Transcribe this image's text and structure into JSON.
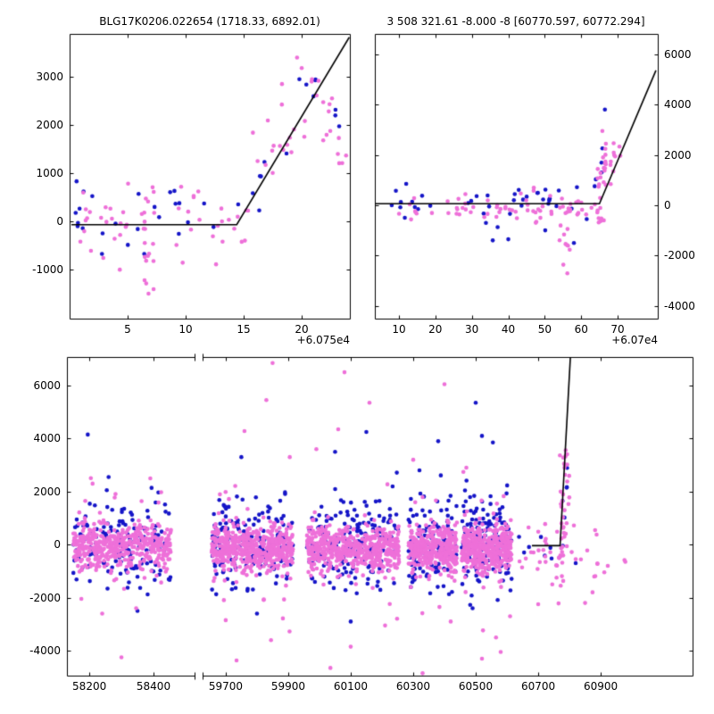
{
  "colors": {
    "background": "#ffffff",
    "blue": "#1515c8",
    "magenta": "#ee70d9",
    "line": "#000000",
    "axis": "#000000"
  },
  "marker_radius": 2.3,
  "chart_data": [
    {
      "id": "top-left",
      "type": "scatter",
      "title": "BLG17K0206.022654 (1718.33, 6892.01)",
      "x_offset_label": "+6.075e4",
      "px": {
        "l": 78,
        "t": 38,
        "r": 392,
        "b": 357
      },
      "xlim": [
        0,
        24.15
      ],
      "ylim": [
        -2020,
        3890
      ],
      "xticks": [
        5,
        10,
        15,
        20
      ],
      "xtick_labels": [
        "5",
        "10",
        "15",
        "20"
      ],
      "yticks": [
        -1000,
        0,
        1000,
        2000,
        3000
      ],
      "ytick_labels": [
        "-1000",
        "0",
        "1000",
        "2000",
        "3000"
      ],
      "ylabel_side": "left",
      "show_xlabels": true,
      "show_ylabels": true,
      "spines": {
        "l": true,
        "r": true,
        "t": true,
        "b": true
      },
      "line": [
        [
          0.15,
          -70
        ],
        [
          14.4,
          -70
        ],
        [
          24.1,
          3820
        ]
      ],
      "clusters": [
        {
          "c": "b",
          "n": 24,
          "x": [
            0.3,
            14.8
          ],
          "y": [
            150,
            150
          ],
          "sd": 330
        },
        {
          "c": "b",
          "n": 9,
          "x": [
            15,
            21.2
          ],
          "y": [
            400,
            2400
          ],
          "sd": 450
        },
        {
          "c": "b",
          "n": 3,
          "x": [
            21.5,
            23.3
          ],
          "y": [
            2250,
            2250
          ],
          "sd": 200
        },
        {
          "c": "b",
          "pts": [
            [
              19.8,
              2950
            ],
            [
              20.4,
              2840
            ],
            [
              0.6,
              830
            ],
            [
              1.2,
              620
            ]
          ]
        },
        {
          "c": "m",
          "n": 46,
          "x": [
            0.3,
            15
          ],
          "y": [
            -30,
            -30
          ],
          "sd": 380
        },
        {
          "c": "m",
          "n": 14,
          "x": [
            6.3,
            7.3
          ],
          "y": [
            -450,
            -450
          ],
          "sd": 650
        },
        {
          "c": "m",
          "n": 22,
          "x": [
            15,
            21.5
          ],
          "y": [
            300,
            2600
          ],
          "sd": 520
        },
        {
          "c": "m",
          "n": 11,
          "x": [
            21.5,
            23.9
          ],
          "y": [
            2300,
            1500
          ],
          "sd": 420
        },
        {
          "c": "m",
          "pts": [
            [
              19.6,
              3400
            ],
            [
              20.0,
              3180
            ],
            [
              6.8,
              -1500
            ],
            [
              6.6,
              -1290
            ],
            [
              2.9,
              -760
            ],
            [
              18.3,
              2850
            ],
            [
              22.4,
              2430
            ],
            [
              16.2,
              1250
            ]
          ]
        }
      ]
    },
    {
      "id": "top-right",
      "type": "scatter",
      "title": "3 508 321.61 -8.000 -8 [60770.597, 60772.294]",
      "x_offset_label": "+6.07e4",
      "px": {
        "l": 420,
        "t": 38,
        "r": 737,
        "b": 357
      },
      "xlim": [
        3.4,
        81
      ],
      "ylim": [
        -4500,
        6800
      ],
      "xticks": [
        10,
        20,
        30,
        40,
        50,
        60,
        70
      ],
      "xtick_labels": [
        "10",
        "20",
        "30",
        "40",
        "50",
        "60",
        "70"
      ],
      "yticks": [
        -4000,
        -2000,
        0,
        2000,
        4000,
        6000
      ],
      "ytick_labels": [
        "-4000",
        "-2000",
        "0",
        "2000",
        "4000",
        "6000"
      ],
      "ylabel_side": "right",
      "show_xlabels": true,
      "show_ylabels": true,
      "spines": {
        "l": true,
        "r": true,
        "t": true,
        "b": true
      },
      "line": [
        [
          3.5,
          60
        ],
        [
          65,
          60
        ],
        [
          80.5,
          5350
        ]
      ],
      "clusters": [
        {
          "c": "b",
          "n": 36,
          "x": [
            8,
            64
          ],
          "y": [
            280,
            280
          ],
          "sd": 350
        },
        {
          "c": "b",
          "n": 4,
          "x": [
            28,
            60
          ],
          "y": [
            -750,
            -900
          ],
          "sd": 350
        },
        {
          "c": "b",
          "n": 5,
          "x": [
            63.5,
            67
          ],
          "y": [
            900,
            2100
          ],
          "sd": 600
        },
        {
          "c": "b",
          "pts": [
            [
              66.5,
              3800
            ],
            [
              40,
              -1350
            ],
            [
              58,
              -1500
            ],
            [
              12,
              850
            ]
          ]
        },
        {
          "c": "m",
          "n": 10,
          "x": [
            8,
            24
          ],
          "y": [
            -50,
            -50
          ],
          "sd": 300
        },
        {
          "c": "m",
          "n": 58,
          "x": [
            25,
            64
          ],
          "y": [
            -150,
            -150
          ],
          "sd": 240
        },
        {
          "c": "m",
          "n": 10,
          "x": [
            53.5,
            57
          ],
          "y": [
            -1000,
            -1100
          ],
          "sd": 700
        },
        {
          "c": "m",
          "n": 26,
          "x": [
            64.3,
            66.8
          ],
          "y": [
            300,
            1500
          ],
          "sd": 750
        },
        {
          "c": "m",
          "n": 9,
          "x": [
            66.8,
            71
          ],
          "y": [
            1700,
            2100
          ],
          "sd": 450
        },
        {
          "c": "m",
          "pts": [
            [
              56.2,
              -2700
            ],
            [
              55.1,
              -2360
            ],
            [
              65.8,
              2950
            ],
            [
              68.9,
              2460
            ],
            [
              66.2,
              -600
            ],
            [
              47,
              700
            ]
          ]
        }
      ]
    },
    {
      "id": "bottom-left-segment",
      "type": "scatter",
      "px": {
        "l": 75,
        "t": 400,
        "r": 218,
        "b": 757
      },
      "xlim": [
        58130,
        58528
      ],
      "ylim": [
        -4940,
        7075
      ],
      "xticks": [
        58200,
        58400
      ],
      "xtick_labels": [
        "58200",
        "58400"
      ],
      "yticks": [
        -4000,
        -2000,
        0,
        2000,
        4000,
        6000
      ],
      "ytick_labels": [
        "-4000",
        "-2000",
        "0",
        "2000",
        "4000",
        "6000"
      ],
      "ylabel_side": "left",
      "show_xlabels": true,
      "show_ylabels": true,
      "spines": {
        "l": true,
        "r": false,
        "t": true,
        "b": true
      },
      "break_edge": "right",
      "clusters": [
        {
          "c": "b",
          "n": 150,
          "x": [
            58150,
            58455
          ],
          "y": [
            0,
            0
          ],
          "sd": 850
        },
        {
          "c": "b",
          "pts": [
            [
              58260,
              2550
            ],
            [
              58350,
              -2500
            ],
            [
              58195,
              4150
            ]
          ]
        },
        {
          "c": "m",
          "n": 430,
          "x": [
            58150,
            58455
          ],
          "y": [
            -120,
            -120
          ],
          "sd": 430
        },
        {
          "c": "m",
          "n": 25,
          "x": [
            58155,
            58450
          ],
          "y": [
            -100,
            -100
          ],
          "sd": 1300
        },
        {
          "c": "m",
          "pts": [
            [
              58300,
              -4250
            ],
            [
              58210,
              2300
            ],
            [
              58390,
              2500
            ],
            [
              58240,
              -2600
            ]
          ]
        }
      ]
    },
    {
      "id": "bottom-right-segment",
      "type": "scatter",
      "px": {
        "l": 227,
        "t": 400,
        "r": 776,
        "b": 757
      },
      "xlim": [
        59626,
        61194
      ],
      "ylim": [
        -4940,
        7075
      ],
      "xticks": [
        59700,
        59900,
        60100,
        60300,
        60500,
        60700,
        60900
      ],
      "xtick_labels": [
        "59700",
        "59900",
        "60100",
        "60300",
        "60500",
        "60700",
        "60900"
      ],
      "yticks": [
        -4000,
        -2000,
        0,
        2000,
        4000,
        6000
      ],
      "ytick_labels": [
        "-4000",
        "-2000",
        "0",
        "2000",
        "4000",
        "6000"
      ],
      "ylabel_side": "left",
      "show_xlabels": true,
      "show_ylabels": false,
      "spines": {
        "l": false,
        "r": true,
        "t": true,
        "b": true
      },
      "break_edge": "left",
      "line": [
        [
          60680,
          -40
        ],
        [
          60770,
          -40
        ],
        [
          60803,
          7075
        ]
      ],
      "clusters": [
        {
          "c": "b",
          "n": 180,
          "x": [
            59655,
            59915
          ],
          "y": [
            50,
            50
          ],
          "sd": 850
        },
        {
          "c": "b",
          "n": 180,
          "x": [
            59960,
            60255
          ],
          "y": [
            50,
            50
          ],
          "sd": 850
        },
        {
          "c": "b",
          "n": 130,
          "x": [
            60285,
            60440
          ],
          "y": [
            80,
            80
          ],
          "sd": 800
        },
        {
          "c": "b",
          "n": 150,
          "x": [
            60455,
            60615
          ],
          "y": [
            150,
            150
          ],
          "sd": 850
        },
        {
          "c": "b",
          "n": 7,
          "x": [
            60630,
            60760
          ],
          "y": [
            0,
            0
          ],
          "sd": 450
        },
        {
          "c": "b",
          "n": 6,
          "x": [
            60765,
            60795
          ],
          "y": [
            1800,
            2400
          ],
          "sd": 800
        },
        {
          "c": "b",
          "pts": [
            [
              59750,
              3300
            ],
            [
              59800,
              -2600
            ],
            [
              60150,
              4250
            ],
            [
              60050,
              3500
            ],
            [
              60100,
              -2900
            ],
            [
              60380,
              3900
            ],
            [
              60320,
              2800
            ],
            [
              60500,
              5350
            ],
            [
              60520,
              4100
            ],
            [
              60555,
              3850
            ],
            [
              60490,
              -2400
            ],
            [
              60820,
              -700
            ]
          ]
        },
        {
          "c": "m",
          "n": 520,
          "x": [
            59655,
            59915
          ],
          "y": [
            -150,
            -150
          ],
          "sd": 420
        },
        {
          "c": "m",
          "n": 30,
          "x": [
            59660,
            59910
          ],
          "y": [
            -150,
            -150
          ],
          "sd": 1400
        },
        {
          "c": "m",
          "n": 520,
          "x": [
            59960,
            60255
          ],
          "y": [
            -150,
            -150
          ],
          "sd": 420
        },
        {
          "c": "m",
          "n": 30,
          "x": [
            59965,
            60250
          ],
          "y": [
            -150,
            -150
          ],
          "sd": 1400
        },
        {
          "c": "m",
          "n": 360,
          "x": [
            60285,
            60440
          ],
          "y": [
            -150,
            -150
          ],
          "sd": 430
        },
        {
          "c": "m",
          "n": 20,
          "x": [
            60290,
            60435
          ],
          "y": [
            -150,
            -150
          ],
          "sd": 1300
        },
        {
          "c": "m",
          "n": 400,
          "x": [
            60455,
            60615
          ],
          "y": [
            -150,
            -150
          ],
          "sd": 430
        },
        {
          "c": "m",
          "n": 22,
          "x": [
            60460,
            60610
          ],
          "y": [
            -150,
            -150
          ],
          "sd": 1300
        },
        {
          "c": "m",
          "n": 22,
          "x": [
            60628,
            60762
          ],
          "y": [
            -250,
            -250
          ],
          "sd": 600
        },
        {
          "c": "m",
          "n": 40,
          "x": [
            60765,
            60800
          ],
          "y": [
            500,
            1300
          ],
          "sd": 1200
        },
        {
          "c": "m",
          "n": 12,
          "x": [
            60800,
            60890
          ],
          "y": [
            -350,
            -550
          ],
          "sd": 650
        },
        {
          "c": "m",
          "n": 4,
          "x": [
            60900,
            60980
          ],
          "y": [
            -400,
            -400
          ],
          "sd": 350
        },
        {
          "c": "m",
          "pts": [
            [
              59850,
              6850
            ],
            [
              59830,
              5450
            ],
            [
              59760,
              4280
            ],
            [
              59700,
              -2850
            ],
            [
              59845,
              -3600
            ],
            [
              59905,
              3300
            ],
            [
              60080,
              6500
            ],
            [
              60160,
              5350
            ],
            [
              60060,
              4350
            ],
            [
              60100,
              -3850
            ],
            [
              60210,
              -3050
            ],
            [
              60035,
              -4650
            ],
            [
              59990,
              3600
            ],
            [
              60400,
              6050
            ],
            [
              60330,
              -4850
            ],
            [
              60300,
              3200
            ],
            [
              60420,
              -2900
            ],
            [
              60520,
              -4300
            ],
            [
              60565,
              -3500
            ],
            [
              60610,
              -2700
            ],
            [
              60470,
              2900
            ],
            [
              60580,
              -4050
            ],
            [
              60700,
              -2250
            ],
            [
              60745,
              -1500
            ],
            [
              60788,
              3560
            ],
            [
              60780,
              3280
            ],
            [
              60772,
              -1550
            ],
            [
              60850,
              -2200
            ]
          ]
        }
      ]
    }
  ]
}
